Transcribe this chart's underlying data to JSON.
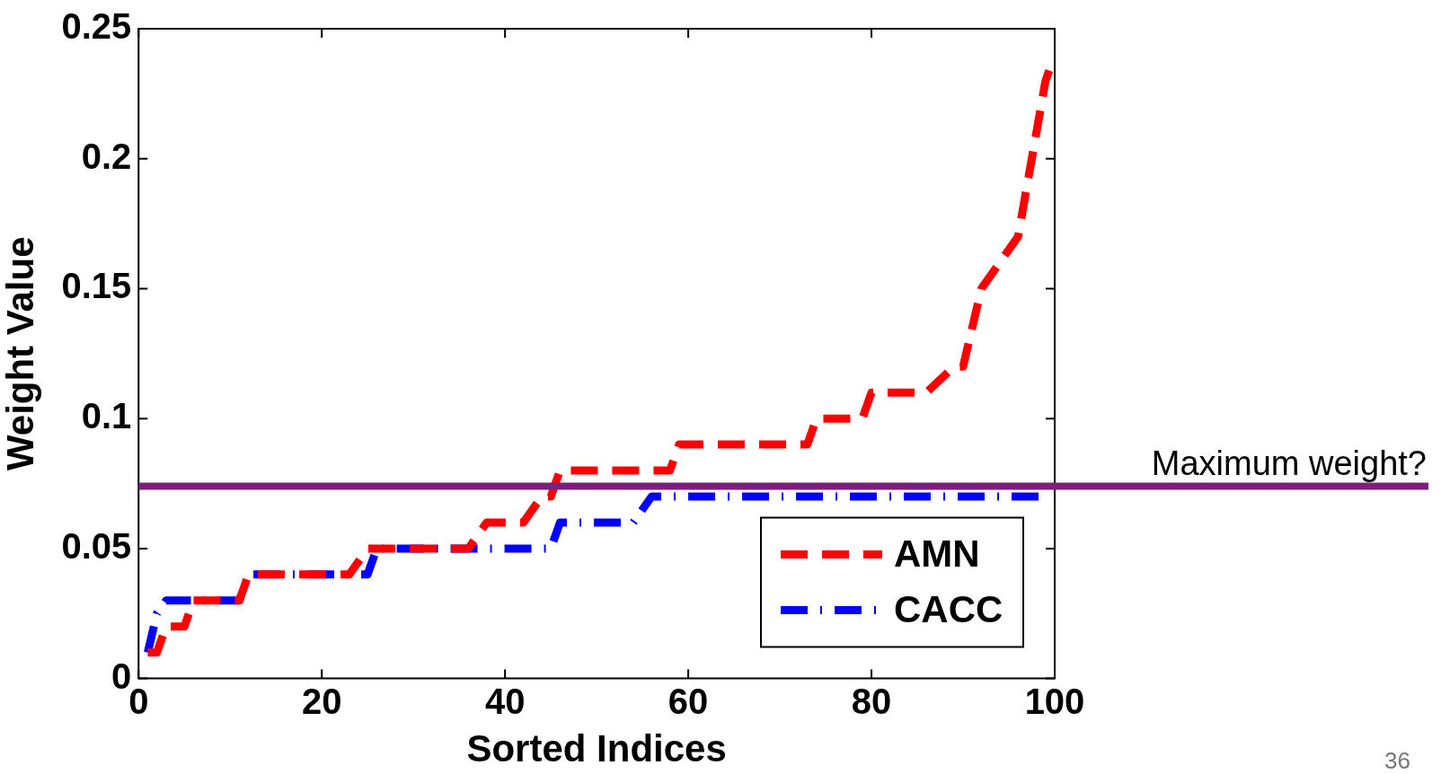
{
  "chart_data": {
    "type": "line",
    "xlabel": "Sorted Indices",
    "ylabel": "Weight Value",
    "xlim": [
      0,
      100
    ],
    "xticks": [
      0,
      20,
      40,
      60,
      80,
      100
    ],
    "ylim": [
      0,
      0.25
    ],
    "yticks": [
      0,
      0.05,
      0.1,
      0.15,
      0.2,
      0.25
    ],
    "grid": false,
    "legend": "bottom right",
    "marker": "none",
    "series": [
      {
        "name": "AMN",
        "color": "#ff0000",
        "line_style": "dashed",
        "x": [
          1,
          2,
          3,
          5,
          6,
          11,
          12,
          23,
          25,
          36,
          38,
          42,
          44,
          45,
          46,
          58,
          59,
          73,
          74,
          79,
          80,
          86,
          89,
          90,
          92,
          94,
          96,
          97,
          98,
          99,
          99.5
        ],
        "values": [
          0.01,
          0.01,
          0.02,
          0.02,
          0.03,
          0.03,
          0.04,
          0.04,
          0.05,
          0.05,
          0.06,
          0.06,
          0.07,
          0.07,
          0.08,
          0.08,
          0.09,
          0.09,
          0.1,
          0.1,
          0.11,
          0.11,
          0.12,
          0.12,
          0.15,
          0.16,
          0.17,
          0.19,
          0.21,
          0.23,
          0.235
        ]
      },
      {
        "name": "CACC",
        "color": "#0000ff",
        "line_style": "dashdot",
        "x": [
          1,
          2,
          3,
          11,
          12,
          25,
          26,
          45,
          46,
          54,
          56,
          99
        ],
        "values": [
          0.01,
          0.025,
          0.03,
          0.03,
          0.04,
          0.04,
          0.05,
          0.05,
          0.06,
          0.06,
          0.07,
          0.07
        ]
      }
    ],
    "ref_lines": [
      {
        "axis": "y",
        "value": 0.074,
        "label": "Maximum weight?",
        "color": "#7b1f7b"
      }
    ],
    "annotations": [
      "36"
    ]
  }
}
